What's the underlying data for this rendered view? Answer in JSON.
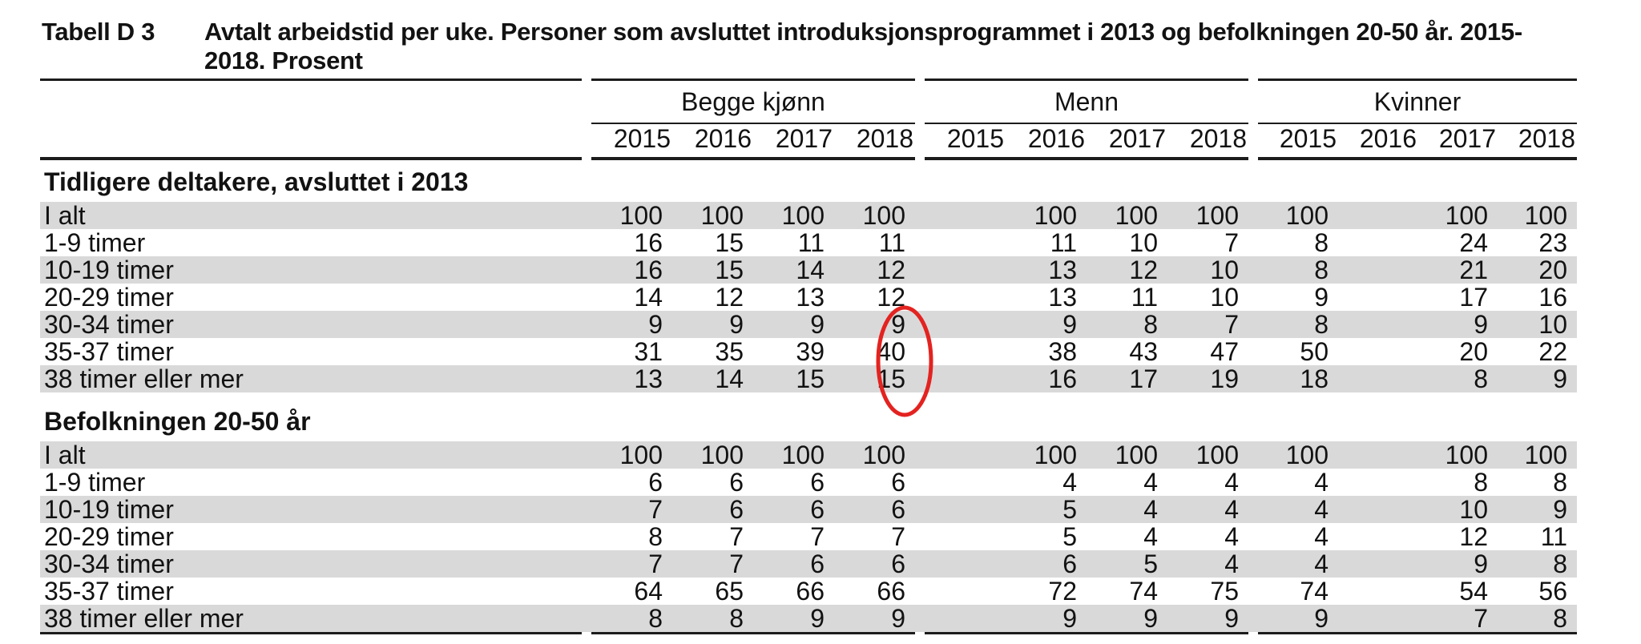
{
  "title": {
    "label": "Tabell D 3",
    "line1": "Avtalt arbeidstid per uke. Personer som avsluttet introduksjonsprogrammet i 2013 og befolkningen 20-50 år. 2015-",
    "line2": "2018. Prosent"
  },
  "columns": {
    "groups": [
      {
        "label": "Begge kjønn",
        "years": [
          "2015",
          "2016",
          "2017",
          "2018"
        ]
      },
      {
        "label": "Menn",
        "years": [
          "2015",
          "2016",
          "2017",
          "2018"
        ]
      },
      {
        "label": "Kvinner",
        "years": [
          "2015",
          "2016",
          "2017",
          "2018"
        ]
      }
    ]
  },
  "sections": [
    {
      "header": "Tidligere deltakere, avsluttet i 2013",
      "rows": [
        {
          "label": "I alt",
          "shaded": true,
          "values": [
            "100",
            "100",
            "100",
            "100",
            "",
            "100",
            "100",
            "100",
            "100",
            "",
            "100",
            "100"
          ]
        },
        {
          "label": "1-9 timer",
          "shaded": false,
          "values": [
            "16",
            "15",
            "11",
            "11",
            "",
            "11",
            "10",
            "7",
            "8",
            "",
            "24",
            "23"
          ]
        },
        {
          "label": "10-19 timer",
          "shaded": true,
          "values": [
            "16",
            "15",
            "14",
            "12",
            "",
            "13",
            "12",
            "10",
            "8",
            "",
            "21",
            "20"
          ]
        },
        {
          "label": "20-29 timer",
          "shaded": false,
          "values": [
            "14",
            "12",
            "13",
            "12",
            "",
            "13",
            "11",
            "10",
            "9",
            "",
            "17",
            "16"
          ]
        },
        {
          "label": "30-34 timer",
          "shaded": true,
          "values": [
            "9",
            "9",
            "9",
            "9",
            "",
            "9",
            "8",
            "7",
            "8",
            "",
            "9",
            "10"
          ]
        },
        {
          "label": "35-37 timer",
          "shaded": false,
          "values": [
            "31",
            "35",
            "39",
            "40",
            "",
            "38",
            "43",
            "47",
            "50",
            "",
            "20",
            "22"
          ]
        },
        {
          "label": "38 timer eller mer",
          "shaded": true,
          "values": [
            "13",
            "14",
            "15",
            "15",
            "",
            "16",
            "17",
            "19",
            "18",
            "",
            "8",
            "9"
          ]
        }
      ]
    },
    {
      "header": "Befolkningen 20-50 år",
      "rows": [
        {
          "label": "I alt",
          "shaded": true,
          "values": [
            "100",
            "100",
            "100",
            "100",
            "",
            "100",
            "100",
            "100",
            "100",
            "",
            "100",
            "100"
          ]
        },
        {
          "label": "1-9 timer",
          "shaded": false,
          "values": [
            "6",
            "6",
            "6",
            "6",
            "",
            "4",
            "4",
            "4",
            "4",
            "",
            "8",
            "8"
          ]
        },
        {
          "label": "10-19 timer",
          "shaded": true,
          "values": [
            "7",
            "6",
            "6",
            "6",
            "",
            "5",
            "4",
            "4",
            "4",
            "",
            "10",
            "9"
          ]
        },
        {
          "label": "20-29 timer",
          "shaded": false,
          "values": [
            "8",
            "7",
            "7",
            "7",
            "",
            "5",
            "4",
            "4",
            "4",
            "",
            "12",
            "11"
          ]
        },
        {
          "label": "30-34 timer",
          "shaded": true,
          "values": [
            "7",
            "7",
            "6",
            "6",
            "",
            "6",
            "5",
            "4",
            "4",
            "",
            "9",
            "8"
          ]
        },
        {
          "label": "35-37 timer",
          "shaded": false,
          "values": [
            "64",
            "65",
            "66",
            "66",
            "",
            "72",
            "74",
            "75",
            "74",
            "",
            "54",
            "56"
          ]
        },
        {
          "label": "38 timer eller mer",
          "shaded": true,
          "values": [
            "8",
            "8",
            "9",
            "9",
            "",
            "9",
            "9",
            "9",
            "9",
            "",
            "7",
            "8"
          ]
        }
      ]
    }
  ],
  "annotation": {
    "shape": "ellipse",
    "color": "#e32320",
    "circled_values": [
      "9",
      "40",
      "15"
    ],
    "note": "Red hand-drawn ellipse circling the Begge kjønn 2018 values for 30-34 timer, 35-37 timer and 38 timer eller mer"
  },
  "style": {
    "shade_color": "#d9d9d9"
  }
}
